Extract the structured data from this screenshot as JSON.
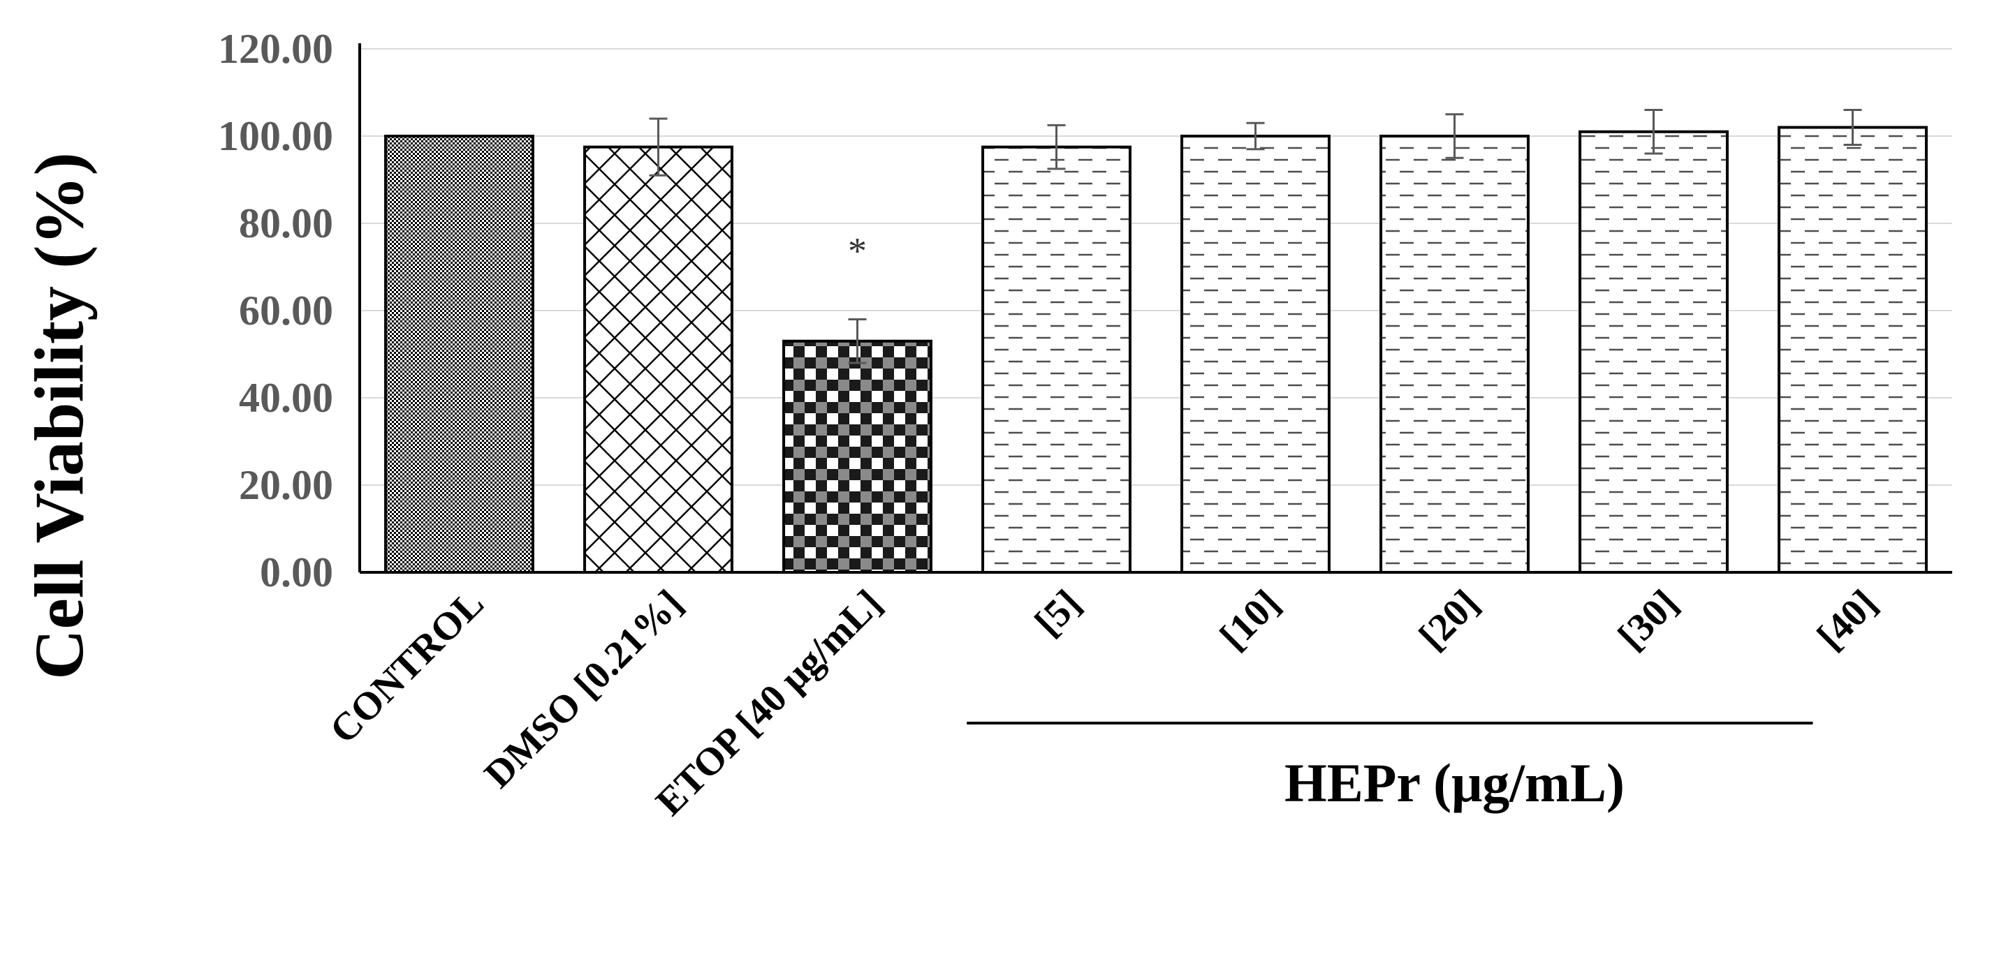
{
  "chart_data": {
    "type": "bar",
    "ylabel": "Cell Viability  (%)",
    "ylim": [
      0,
      120
    ],
    "ytick_values": [
      0,
      20,
      40,
      60,
      80,
      100,
      120
    ],
    "ytick_labels": [
      "0.00",
      "20.00",
      "40.00",
      "60.00",
      "80.00",
      "100.00",
      "120.00"
    ],
    "grid": true,
    "categories": [
      "CONTROL",
      "DMSO [0.21%]",
      "ETOP [40 μg/mL]",
      "[5]",
      "[10]",
      "[20]",
      "[30]",
      "[40]"
    ],
    "values": [
      100,
      97.5,
      53,
      97.5,
      100,
      100,
      101,
      102
    ],
    "errors": [
      0,
      6.5,
      5,
      5,
      3,
      5,
      5,
      4
    ],
    "patterns": [
      "dots",
      "diagonal-cross",
      "checker",
      "dashes",
      "dashes",
      "dashes",
      "dashes",
      "dashes"
    ],
    "annotations": [
      {
        "category": "ETOP [40 μg/mL]",
        "text": "*"
      }
    ],
    "group_label": {
      "text": "HEPr (μg/mL)",
      "categories": [
        "[5]",
        "[10]",
        "[20]",
        "[30]",
        "[40]"
      ]
    },
    "colors": {
      "bar_edge": "#000000",
      "grid": "#d9d9d9",
      "axis": "#000000",
      "tick_text": "#595959"
    }
  }
}
